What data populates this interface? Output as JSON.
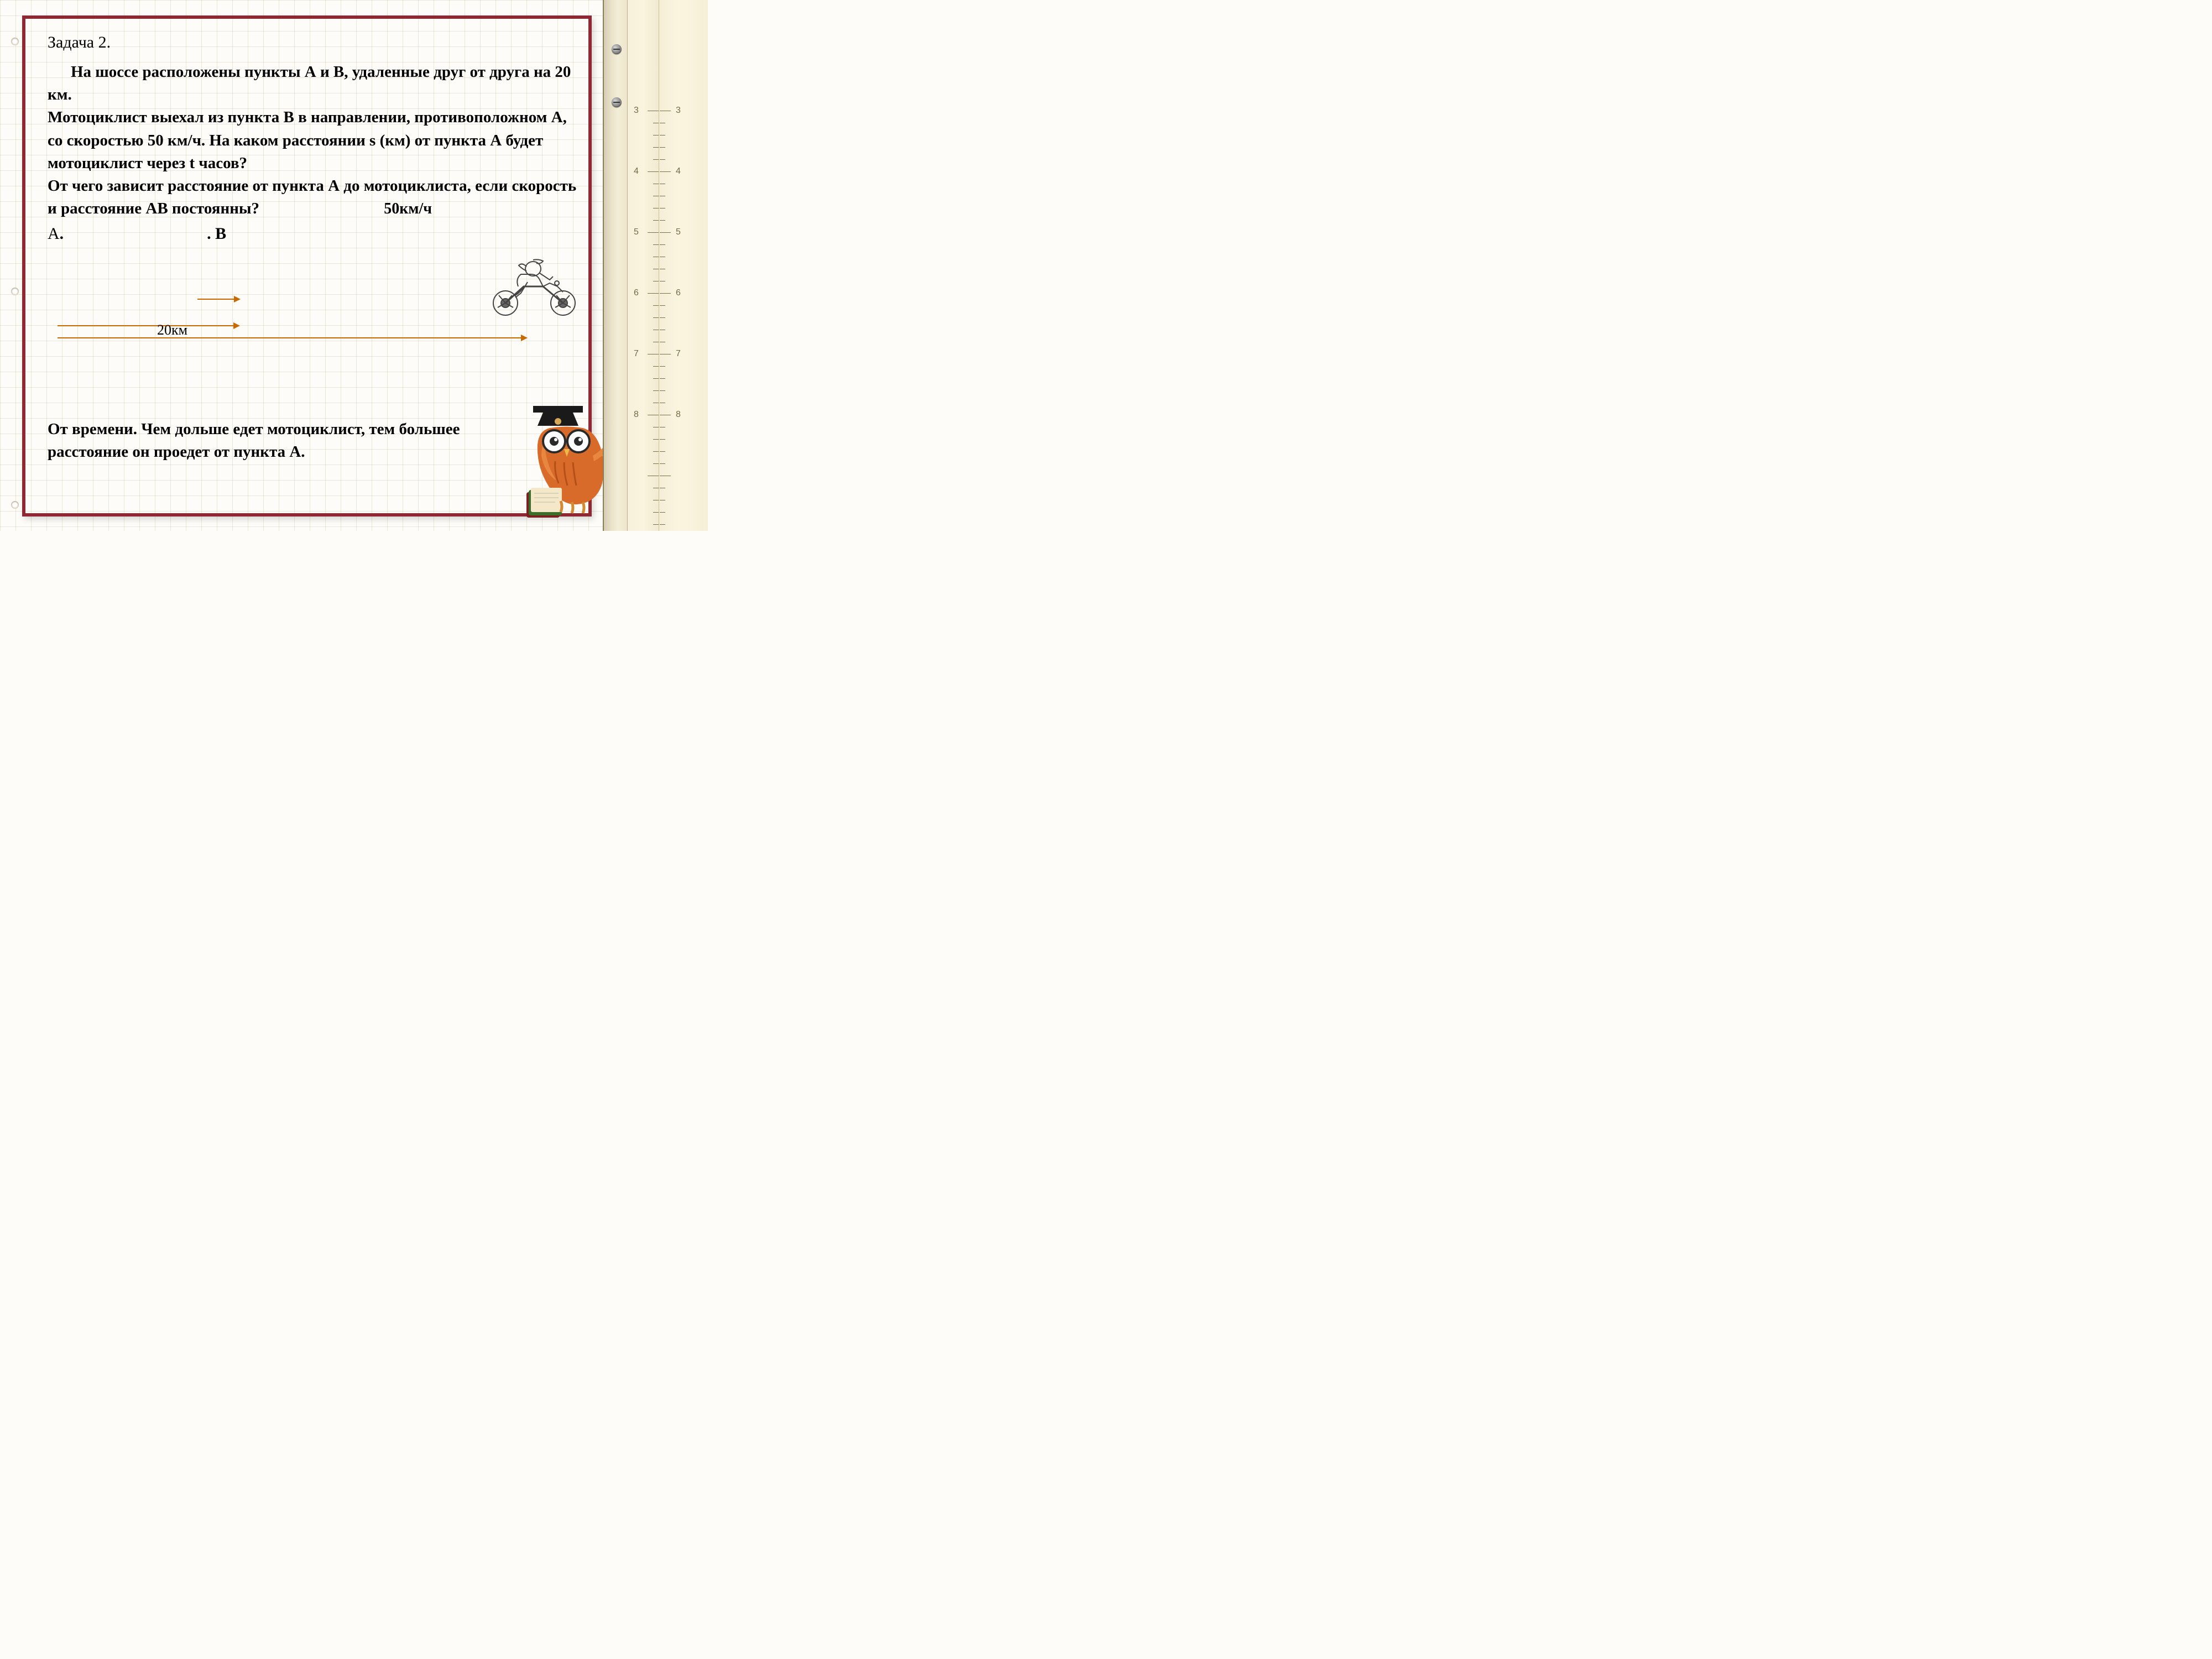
{
  "colors": {
    "frame": "#8e2833",
    "arrow": "#c86a00",
    "text": "#000000",
    "grid": "rgba(200,190,160,0.35)"
  },
  "problem": {
    "title": "Задача 2.",
    "intro": "На шоссе расположены пункты А и В, удаленные друг от друга на 20 км.",
    "body1": "Мотоциклист выехал из пункта В в направлении, противоположном А, со скоростью 50 км/ч. На каком расстоянии s (км) от пункта А будет мотоциклист через t часов?",
    "body2": "От чего зависит расстояние от пункта А до мотоциклиста, если скорость и расстояние АВ постоянны?",
    "speed_label": "50км/ч",
    "points": {
      "a": "А",
      "b": "В"
    },
    "distance_label": "20км"
  },
  "answer": "От времени. Чем дольше едет мотоциклист, тем большее расстояние он проедет от пункта А.",
  "diagram": {
    "line_color": "#c86a00",
    "short_arrow_width": 328,
    "long_arrow_width": 848,
    "speed_arrow_width": 76
  },
  "ruler": {
    "screws": [
      80,
      176
    ],
    "ticks_start": 200,
    "tick_spacing": 22,
    "major_every": 5,
    "numbers": [
      "3",
      "4",
      "5",
      "6",
      "7",
      "8"
    ]
  },
  "holes": [
    68,
    520,
    906
  ]
}
